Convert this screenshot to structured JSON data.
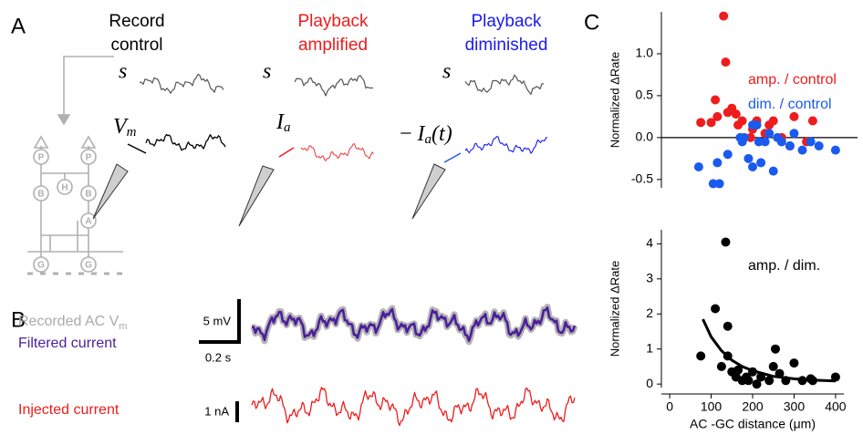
{
  "panels": {
    "a": {
      "label": "A",
      "columns": [
        {
          "title": [
            "Record",
            "control"
          ],
          "color": "#000000"
        },
        {
          "title": [
            "Playback",
            "amplified"
          ],
          "color": "#ee1c1c"
        },
        {
          "title": [
            "Playback",
            "diminished"
          ],
          "color": "#1a1aee"
        }
      ],
      "stimulus_symbol": "s",
      "vm": {
        "base": "V",
        "sub": "m"
      },
      "ia": {
        "base": "I",
        "sub": "a"
      },
      "neg_ia": {
        "prefix": "− ",
        "base": "I",
        "sub": "a",
        "suffix": "(t)"
      },
      "circuit_nodes": [
        "P",
        "P",
        "B",
        "H",
        "B",
        "A",
        "G",
        "G"
      ]
    },
    "b": {
      "label": "B",
      "recorded": {
        "text": "Recorded AC V",
        "sub": "m"
      },
      "filtered": "Filtered current",
      "injected": "Injected current",
      "scale_mv": "5 mV",
      "scale_s": "0.2 s",
      "scale_na": "1 nA"
    },
    "c": {
      "label": "C"
    }
  },
  "chart_data": [
    {
      "type": "scatter",
      "ylabel": "Normalized ΔRate",
      "xlim": [
        -20,
        420
      ],
      "ylim": [
        -0.6,
        1.5
      ],
      "yticks": [
        -0.5,
        {
          "value": 0,
          "label": "0.0"
        },
        0.5,
        {
          "value": 1,
          "label": "1.0"
        }
      ],
      "zero_line": true,
      "series": [
        {
          "name": "amp. / control",
          "color": "#ee1c1c",
          "x": [
            130,
            135,
            110,
            75,
            100,
            115,
            140,
            150,
            160,
            165,
            175,
            200,
            210,
            230,
            240,
            250,
            270,
            290,
            300,
            330,
            345,
            195
          ],
          "values": [
            1.45,
            0.9,
            0.45,
            0.18,
            0.18,
            0.25,
            0.3,
            0.35,
            0.28,
            0.15,
            0.2,
            0.1,
            0.2,
            0.05,
            0.15,
            0.2,
            0.0,
            -0.1,
            0.25,
            -0.05,
            0.2,
            0.0
          ]
        },
        {
          "name": "dim.  / control",
          "color": "#1a5aee",
          "x": [
            70,
            105,
            120,
            115,
            140,
            170,
            175,
            180,
            190,
            200,
            200,
            210,
            215,
            230,
            240,
            250,
            260,
            270,
            290,
            300,
            320,
            340,
            360,
            400,
            220
          ],
          "values": [
            -0.35,
            -0.55,
            -0.55,
            -0.3,
            -0.2,
            0.0,
            -0.05,
            0.0,
            -0.25,
            -0.35,
            0.15,
            0.15,
            -0.05,
            -0.05,
            0.05,
            -0.4,
            0.0,
            -0.05,
            -0.1,
            0.05,
            -0.15,
            -0.05,
            -0.1,
            -0.15,
            -0.3
          ]
        }
      ]
    },
    {
      "type": "scatter",
      "ylabel": "Normalized ΔRate",
      "xlabel": "AC -GC distance (μm)",
      "xlim": [
        -20,
        420
      ],
      "ylim": [
        -0.1,
        4.4
      ],
      "xticks": [
        0,
        100,
        200,
        300,
        400
      ],
      "yticks": [
        0,
        1,
        2,
        3,
        4
      ],
      "series": [
        {
          "name": "amp. / dim.",
          "color": "#000000",
          "x": [
            75,
            110,
            125,
            135,
            140,
            140,
            150,
            160,
            165,
            175,
            185,
            190,
            200,
            210,
            220,
            240,
            250,
            255,
            265,
            280,
            300,
            320,
            340,
            345,
            400
          ],
          "values": [
            0.8,
            2.15,
            0.5,
            4.05,
            1.65,
            0.8,
            0.35,
            0.2,
            0.4,
            0.1,
            0.2,
            0.1,
            0.35,
            0.0,
            0.2,
            0.1,
            0.5,
            1.0,
            0.3,
            0.1,
            0.6,
            0.1,
            0.15,
            0.1,
            0.2
          ]
        }
      ],
      "fit": {
        "color": "#000000",
        "x": [
          80,
          100,
          125,
          150,
          175,
          200,
          250,
          300,
          350,
          400
        ],
        "values": [
          1.85,
          1.35,
          0.95,
          0.68,
          0.5,
          0.38,
          0.22,
          0.15,
          0.11,
          0.09
        ]
      }
    }
  ]
}
